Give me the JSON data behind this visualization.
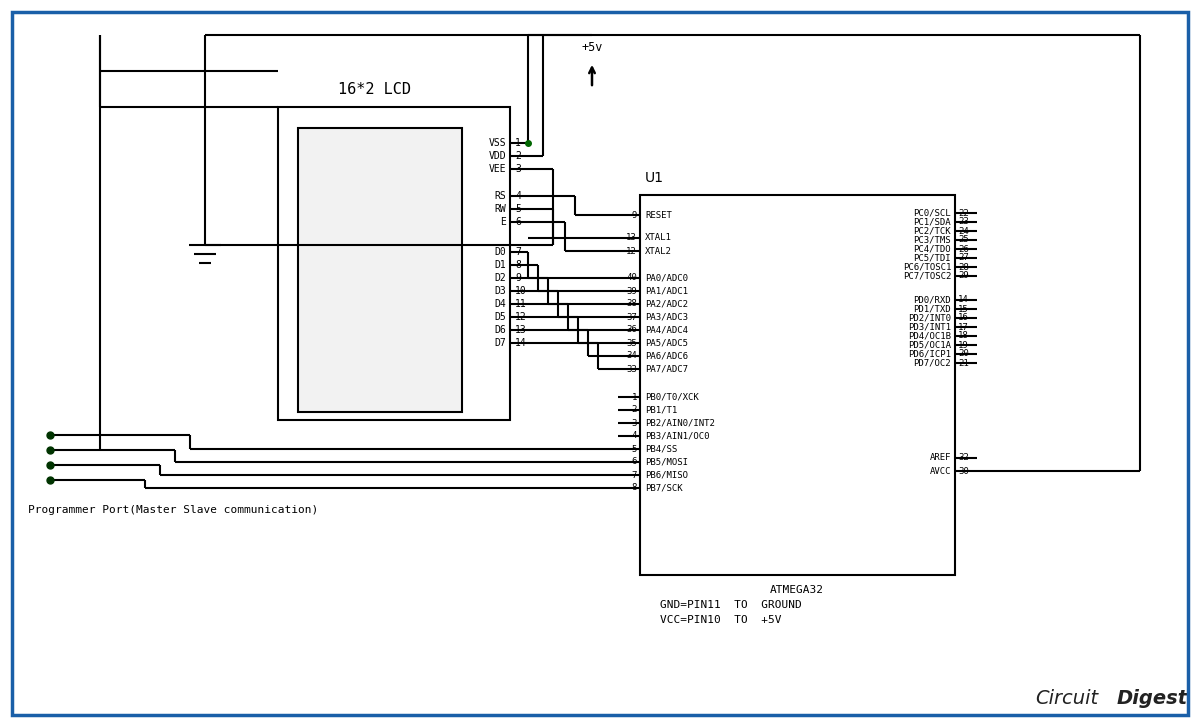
{
  "bg_color": "#ffffff",
  "border_color": "#1a5fa8",
  "lc": "#000000",
  "lcd_title": "16*2 LCD",
  "ic_title": "U1",
  "ic_label": "ATMEGA32",
  "lcd_pin_labels": [
    "VSS",
    "VDD",
    "VEE",
    "RS",
    "RW",
    "E",
    "D0",
    "D1",
    "D2",
    "D3",
    "D4",
    "D5",
    "D6",
    "D7"
  ],
  "lcd_pin_nums": [
    "1",
    "2",
    "3",
    "4",
    "5",
    "6",
    "7",
    "8",
    "9",
    "10",
    "11",
    "12",
    "13",
    "14"
  ],
  "atm_lpins": [
    [
      "9",
      "RESET"
    ],
    [
      "13",
      "XTAL1"
    ],
    [
      "12",
      "XTAL2"
    ],
    [
      "40",
      "PA0/ADC0"
    ],
    [
      "39",
      "PA1/ADC1"
    ],
    [
      "38",
      "PA2/ADC2"
    ],
    [
      "37",
      "PA3/ADC3"
    ],
    [
      "36",
      "PA4/ADC4"
    ],
    [
      "35",
      "PA5/ADC5"
    ],
    [
      "34",
      "PA6/ADC6"
    ],
    [
      "33",
      "PA7/ADC7"
    ],
    [
      "1",
      "PB0/T0/XCK"
    ],
    [
      "2",
      "PB1/T1"
    ],
    [
      "3",
      "PB2/AIN0/INT2"
    ],
    [
      "4",
      "PB3/AIN1/OC0"
    ],
    [
      "5",
      "PB4/SS"
    ],
    [
      "6",
      "PB5/MOSI"
    ],
    [
      "7",
      "PB6/MISO"
    ],
    [
      "8",
      "PB7/SCK"
    ]
  ],
  "atm_rpins": [
    [
      "22",
      "PC0/SCL"
    ],
    [
      "23",
      "PC1/SDA"
    ],
    [
      "24",
      "PC2/TCK"
    ],
    [
      "25",
      "PC3/TMS"
    ],
    [
      "26",
      "PC4/TDO"
    ],
    [
      "27",
      "PC5/TDI"
    ],
    [
      "28",
      "PC6/TOSC1"
    ],
    [
      "29",
      "PC7/TOSC2"
    ],
    [
      "14",
      "PD0/RXD"
    ],
    [
      "15",
      "PD1/TXD"
    ],
    [
      "16",
      "PD2/INT0"
    ],
    [
      "17",
      "PD3/INT1"
    ],
    [
      "18",
      "PD4/OC1B"
    ],
    [
      "19",
      "PD5/OC1A"
    ],
    [
      "20",
      "PD6/ICP1"
    ],
    [
      "21",
      "PD7/OC2"
    ],
    [
      "32",
      "AREF"
    ],
    [
      "30",
      "AVCC"
    ]
  ],
  "note1": "GND=PIN11  TO  GROUND",
  "note2": "VCC=PIN10  TO  +5V",
  "prog_label": "Programmer Port(Master Slave communication)",
  "pwr_label": "+5v"
}
